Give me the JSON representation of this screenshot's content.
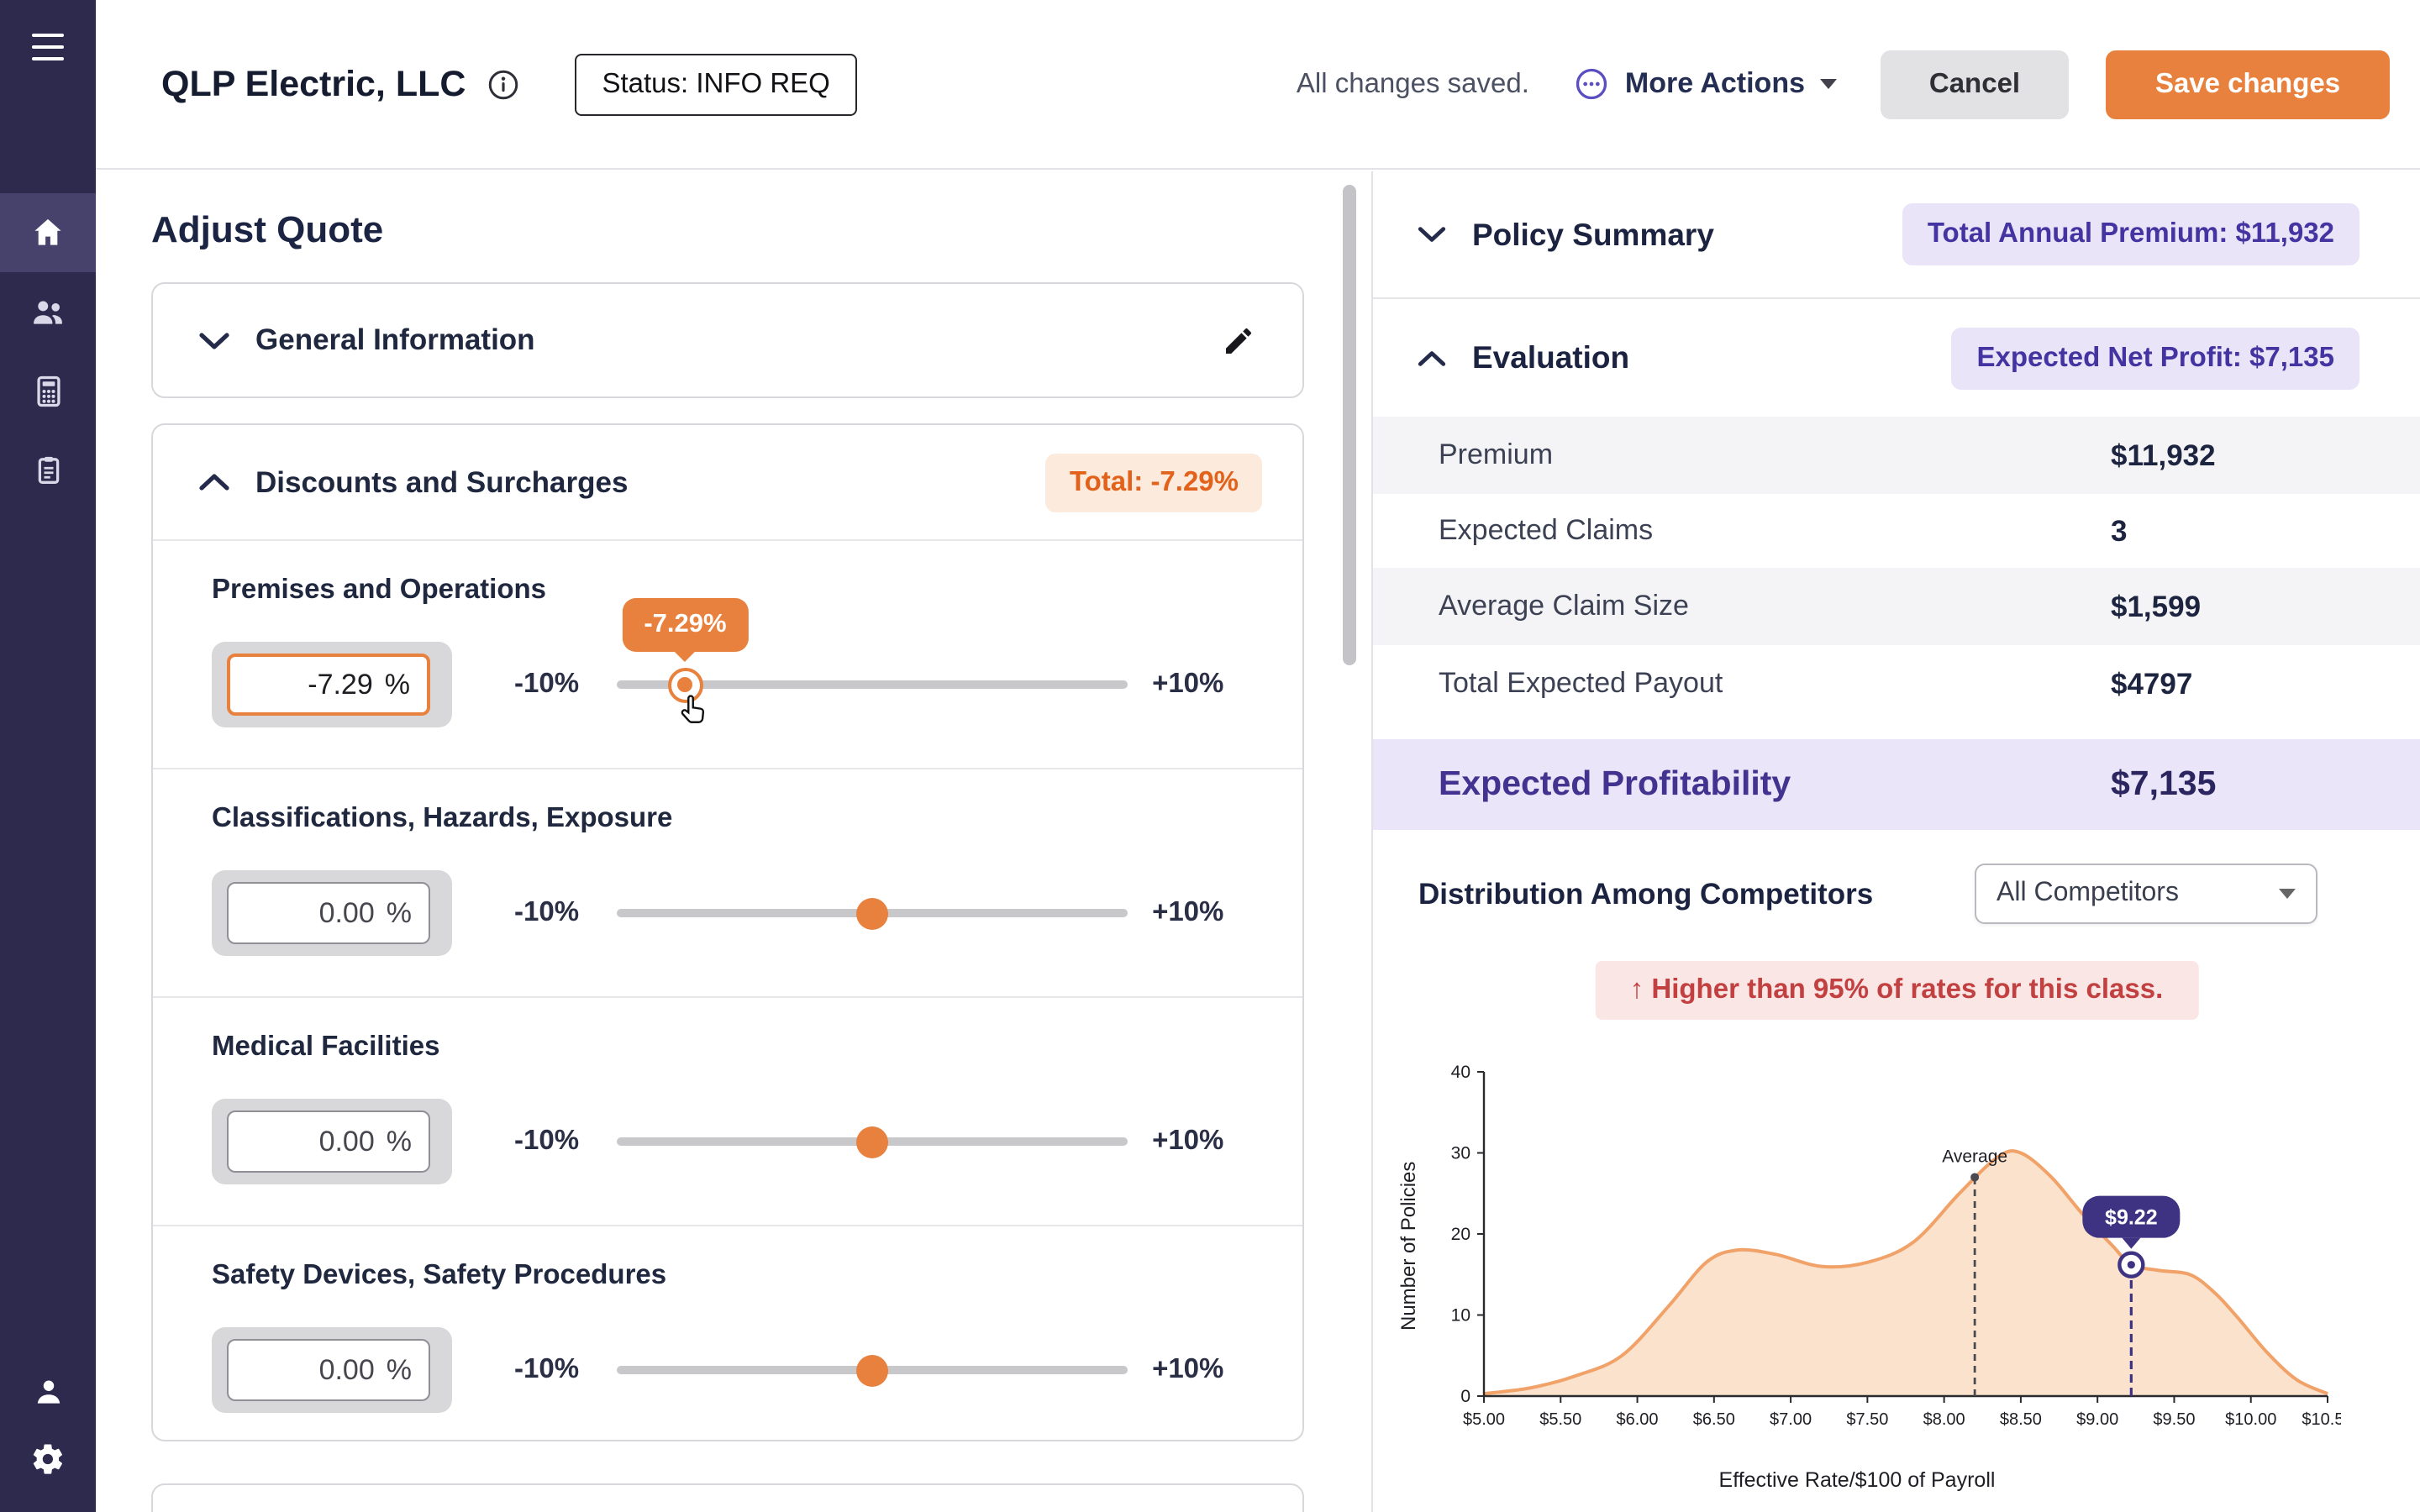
{
  "colors": {
    "accent_orange": "#E8813D",
    "accent_purple": "#4434A2",
    "sidebar_bg": "#2D2A4E",
    "alert_red": "#C24040",
    "badge_lavender_bg": "#E9E4F8",
    "badge_orange_bg": "#FCEBDC"
  },
  "sidebar": {
    "items": [
      {
        "icon": "hamburger-menu"
      },
      {
        "icon": "home",
        "active": true
      },
      {
        "icon": "users"
      },
      {
        "icon": "calculator"
      },
      {
        "icon": "documents"
      },
      {
        "icon": "account"
      },
      {
        "icon": "settings"
      }
    ]
  },
  "header": {
    "company_name": "QLP Electric, LLC",
    "status_label": "Status: INFO REQ",
    "saved_text": "All changes saved.",
    "more_actions_label": "More Actions",
    "cancel_label": "Cancel",
    "save_label": "Save changes"
  },
  "quote_panel": {
    "title": "Adjust Quote",
    "general_section_title": "General Information",
    "discounts_section": {
      "title": "Discounts and Surcharges",
      "total_badge": "Total: -7.29%",
      "slider_range": [
        -10,
        10
      ],
      "rows": [
        {
          "label": "Premises and Operations",
          "value": "-7.29",
          "unit": "%",
          "min_label": "-10%",
          "max_label": "+10%",
          "slider_value": -7.29,
          "tooltip": "-7.29%"
        },
        {
          "label": "Classifications, Hazards, Exposure",
          "value": "0.00",
          "unit": "%",
          "min_label": "-10%",
          "max_label": "+10%",
          "slider_value": 0
        },
        {
          "label": "Medical Facilities",
          "value": "0.00",
          "unit": "%",
          "min_label": "-10%",
          "max_label": "+10%",
          "slider_value": 0
        },
        {
          "label": "Safety Devices, Safety Procedures",
          "value": "0.00",
          "unit": "%",
          "min_label": "-10%",
          "max_label": "+10%",
          "slider_value": 0
        }
      ]
    }
  },
  "summary_panel": {
    "policy_summary_label": "Policy Summary",
    "premium_badge": "Total Annual Premium: $11,932",
    "evaluation_label": "Evaluation",
    "net_profit_badge": "Expected Net Profit: $7,135",
    "rows": [
      {
        "label": "Premium",
        "value": "$11,932"
      },
      {
        "label": "Expected Claims",
        "value": "3"
      },
      {
        "label": "Average Claim Size",
        "value": "$1,599"
      },
      {
        "label": "Total Expected Payout",
        "value": "$4797"
      }
    ],
    "profitability_label": "Expected Profitability",
    "profitability_value": "$7,135",
    "distribution_title": "Distribution Among Competitors",
    "competitor_filter_value": "All Competitors",
    "alert_text": "↑ Higher than 95% of rates for this class."
  },
  "chart_data": {
    "type": "area",
    "title": "Distribution Among Competitors",
    "xlabel": "Effective Rate/$100 of Payroll",
    "ylabel": "Number of Policies",
    "xlim": [
      5.0,
      10.5
    ],
    "ylim": [
      0,
      40
    ],
    "x_tick_values": [
      5.0,
      5.5,
      6.0,
      6.5,
      7.0,
      7.5,
      8.0,
      8.5,
      9.0,
      9.5,
      10.0,
      10.5
    ],
    "x_tick_labels": [
      "$5.00",
      "$5.50",
      "$6.00",
      "$6.50",
      "$7.00",
      "$7.50",
      "$8.00",
      "$8.50",
      "$9.00",
      "$9.50",
      "$10.00",
      "$10.50"
    ],
    "y_ticks": [
      0,
      10,
      20,
      30,
      40
    ],
    "series": [
      {
        "name": "All Competitors",
        "points": [
          [
            5.0,
            0.3
          ],
          [
            5.3,
            1
          ],
          [
            5.6,
            2.5
          ],
          [
            5.9,
            5
          ],
          [
            6.2,
            11
          ],
          [
            6.45,
            16.5
          ],
          [
            6.65,
            18
          ],
          [
            6.9,
            17.5
          ],
          [
            7.2,
            16
          ],
          [
            7.5,
            16.5
          ],
          [
            7.8,
            19
          ],
          [
            8.1,
            25
          ],
          [
            8.35,
            29.5
          ],
          [
            8.5,
            30
          ],
          [
            8.7,
            27
          ],
          [
            8.9,
            22.5
          ],
          [
            9.1,
            18.5
          ],
          [
            9.22,
            16.2
          ],
          [
            9.4,
            15.5
          ],
          [
            9.6,
            15
          ],
          [
            9.75,
            13
          ],
          [
            9.9,
            10
          ],
          [
            10.1,
            5.5
          ],
          [
            10.3,
            2
          ],
          [
            10.5,
            0.3
          ]
        ]
      }
    ],
    "average_marker": {
      "x": 8.2,
      "label": "Average",
      "dot_y": 27
    },
    "selected_marker": {
      "x": 9.22,
      "y": 16.2,
      "tooltip": "$9.22"
    },
    "fill_color": "#FBE2CC",
    "line_color": "#F0A269",
    "marker_color": "#3D3382",
    "legend": "off",
    "grid": "off"
  }
}
